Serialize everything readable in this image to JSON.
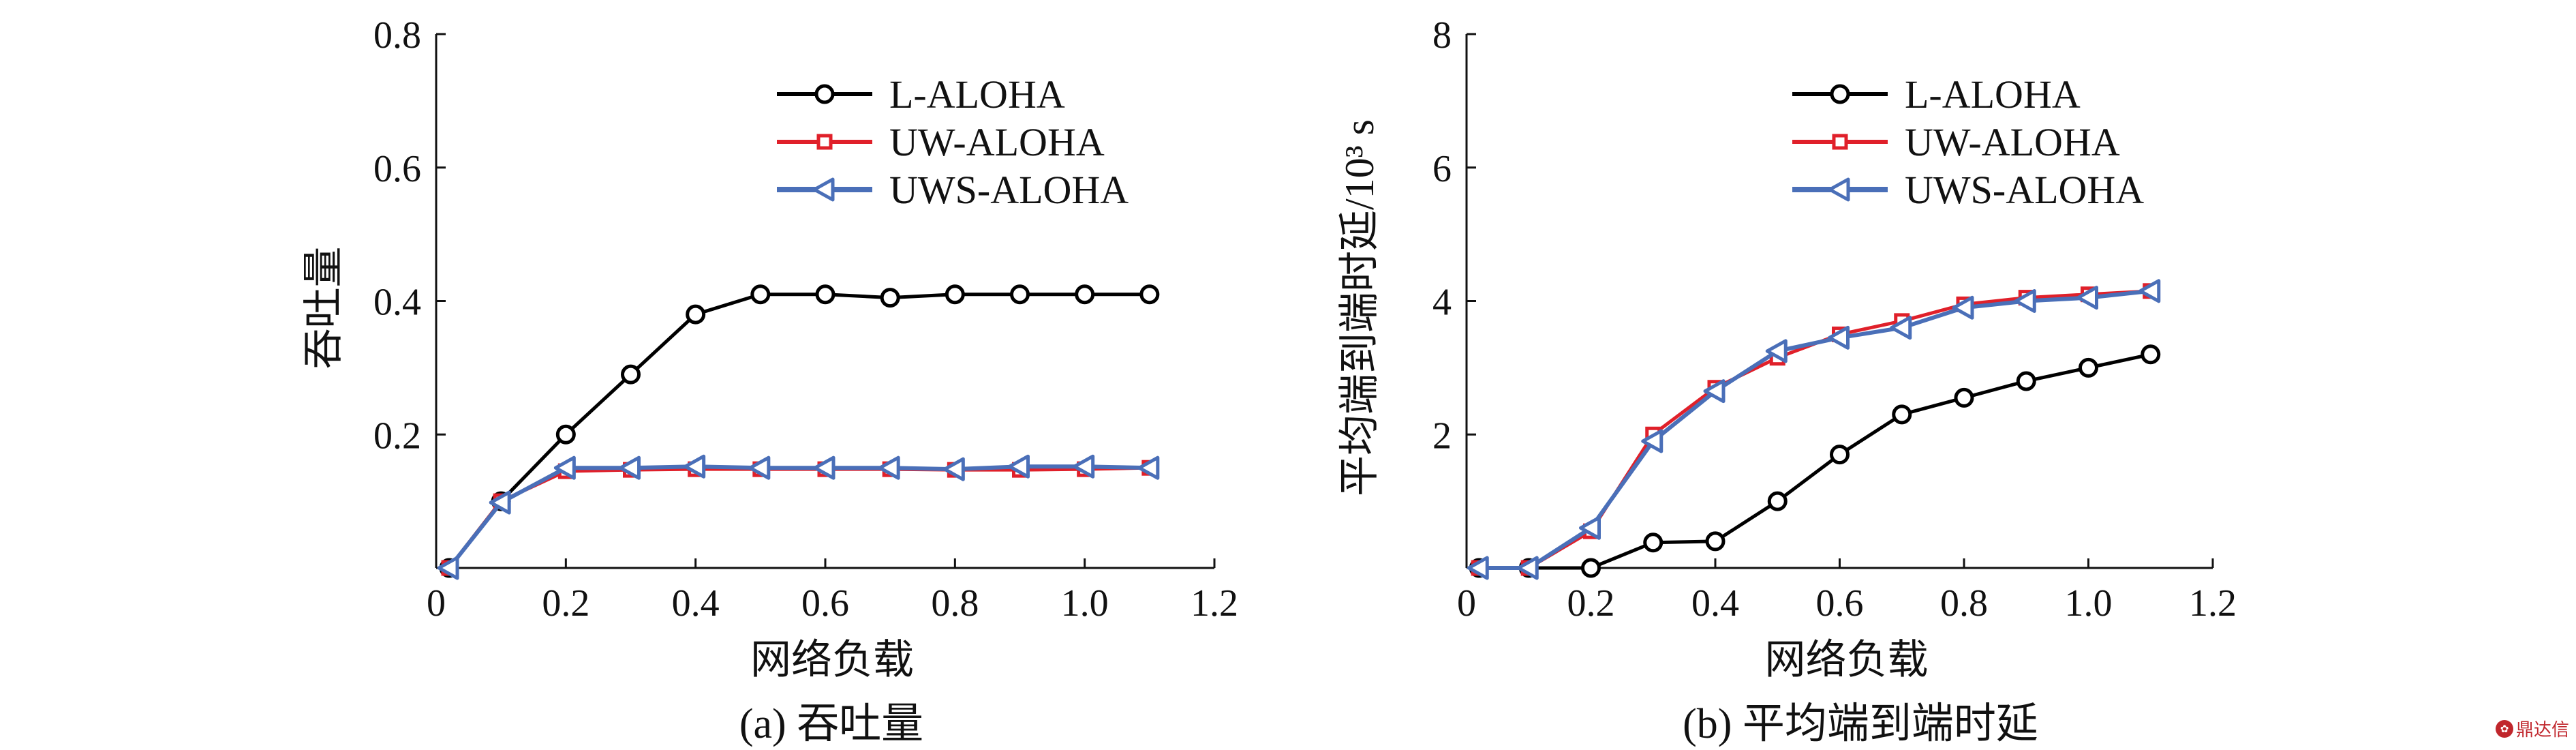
{
  "chart_data": [
    {
      "type": "line",
      "caption": "(a) 吞吐量",
      "xlabel": "网络负载",
      "ylabel": "吞吐量",
      "xlim": [
        0,
        1.2
      ],
      "ylim": [
        0,
        0.8
      ],
      "x_ticks": [
        "0",
        "0.2",
        "0.4",
        "0.6",
        "0.8",
        "1.0",
        "1.2"
      ],
      "y_ticks": [
        "0.2",
        "0.4",
        "0.6",
        "0.8"
      ],
      "grid": false,
      "legend_position": "top-right",
      "series": [
        {
          "name": "L-ALOHA",
          "color": "#000000",
          "marker": "circle",
          "x": [
            0.02,
            0.1,
            0.2,
            0.3,
            0.4,
            0.5,
            0.6,
            0.7,
            0.8,
            0.9,
            1.0,
            1.1
          ],
          "y": [
            0.0,
            0.1,
            0.2,
            0.29,
            0.38,
            0.41,
            0.41,
            0.405,
            0.41,
            0.41,
            0.41,
            0.41
          ]
        },
        {
          "name": "UW-ALOHA",
          "color": "#e0202a",
          "marker": "square",
          "x": [
            0.02,
            0.1,
            0.2,
            0.3,
            0.4,
            0.5,
            0.6,
            0.7,
            0.8,
            0.9,
            1.0,
            1.1
          ],
          "y": [
            0.0,
            0.1,
            0.145,
            0.147,
            0.148,
            0.148,
            0.148,
            0.148,
            0.147,
            0.147,
            0.148,
            0.15
          ]
        },
        {
          "name": "UWS-ALOHA",
          "color": "#4a6fb8",
          "marker": "triangle-left",
          "x": [
            0.02,
            0.1,
            0.2,
            0.3,
            0.4,
            0.5,
            0.6,
            0.7,
            0.8,
            0.9,
            1.0,
            1.1
          ],
          "y": [
            0.0,
            0.098,
            0.15,
            0.15,
            0.152,
            0.15,
            0.15,
            0.15,
            0.148,
            0.152,
            0.152,
            0.15
          ]
        }
      ]
    },
    {
      "type": "line",
      "caption": "(b) 平均端到端时延",
      "xlabel": "网络负载",
      "ylabel": "平均端到端时延/10³ s",
      "xlim": [
        0,
        1.2
      ],
      "ylim": [
        0,
        8
      ],
      "x_ticks": [
        "0",
        "0.2",
        "0.4",
        "0.6",
        "0.8",
        "1.0",
        "1.2"
      ],
      "y_ticks": [
        "2",
        "4",
        "6",
        "8"
      ],
      "grid": false,
      "legend_position": "top-right",
      "series": [
        {
          "name": "L-ALOHA",
          "color": "#000000",
          "marker": "circle",
          "x": [
            0.02,
            0.1,
            0.2,
            0.3,
            0.4,
            0.5,
            0.6,
            0.7,
            0.8,
            0.9,
            1.0,
            1.1
          ],
          "y": [
            0.0,
            0.0,
            0.0,
            0.38,
            0.4,
            1.0,
            1.7,
            2.3,
            2.55,
            2.8,
            3.0,
            3.2
          ]
        },
        {
          "name": "UW-ALOHA",
          "color": "#e0202a",
          "marker": "square",
          "x": [
            0.02,
            0.1,
            0.2,
            0.3,
            0.4,
            0.5,
            0.6,
            0.7,
            0.8,
            0.9,
            1.0,
            1.1
          ],
          "y": [
            0.0,
            0.0,
            0.55,
            2.0,
            2.7,
            3.15,
            3.5,
            3.7,
            3.95,
            4.05,
            4.1,
            4.15
          ]
        },
        {
          "name": "UWS-ALOHA",
          "color": "#4a6fb8",
          "marker": "triangle-left",
          "x": [
            0.02,
            0.1,
            0.2,
            0.3,
            0.4,
            0.5,
            0.6,
            0.7,
            0.8,
            0.9,
            1.0,
            1.1
          ],
          "y": [
            0.0,
            0.0,
            0.6,
            1.9,
            2.65,
            3.25,
            3.45,
            3.6,
            3.9,
            4.0,
            4.05,
            4.15
          ]
        }
      ]
    }
  ],
  "watermark": {
    "text": "鼎达信"
  }
}
